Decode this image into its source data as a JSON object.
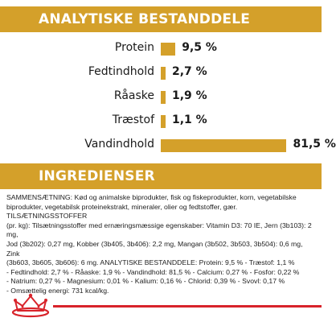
{
  "colors": {
    "accent": "#d4a02a",
    "brand_red": "#d8232a",
    "text": "#1a1a1a"
  },
  "analysis": {
    "title": "ANALYTISKE BESTANDDELE",
    "rows": [
      {
        "label": "Protein",
        "value": "9,5 %",
        "percent": 9.5
      },
      {
        "label": "Fedtindhold",
        "value": "2,7 %",
        "percent": 2.7
      },
      {
        "label": "Råaske",
        "value": "1,9 %",
        "percent": 1.9
      },
      {
        "label": "Træstof",
        "value": "1,1 %",
        "percent": 1.1
      },
      {
        "label": "Vandindhold",
        "value": "81,5 %",
        "percent": 81.5
      }
    ]
  },
  "ingredients": {
    "title": "INGREDIENSER",
    "lines": [
      "SAMMENSÆTNING: Kød og animalske biprodukter, fisk og fiskeprodukter, korn, vegetabilske",
      "biprodukter, vegetabilsk proteinekstrakt, mineraler, olier og fedtstoffer, gær. TILSÆTNINGSSTOFFER",
      "(pr. kg): Tilsætningsstoffer med ernæringsmæssige egenskaber: Vitamin D3: 70 IE, Jern (3b103): 2 mg,",
      "Jod (3b202): 0,27 mg, Kobber (3b405, 3b406): 2,2 mg, Mangan (3b502, 3b503, 3b504): 0,6 mg, Zink",
      "(3b603, 3b605, 3b606): 6 mg. ANALYTISKE BESTANDDELE: Protein: 9,5 % - Træstof: 1,1 %",
      "- Fedtindhold: 2,7 % - Råaske: 1,9 % - Vandindhold: 81,5 % - Calcium: 0,27 % - Fosfor: 0,22 %",
      "- Natrium: 0,27 % - Magnesium: 0,01 % - Kalium: 0,16 % - Chlorid: 0,39 % - Svovl: 0,17 %",
      "- Omsættelig energi: 731 kcal/kg."
    ]
  }
}
